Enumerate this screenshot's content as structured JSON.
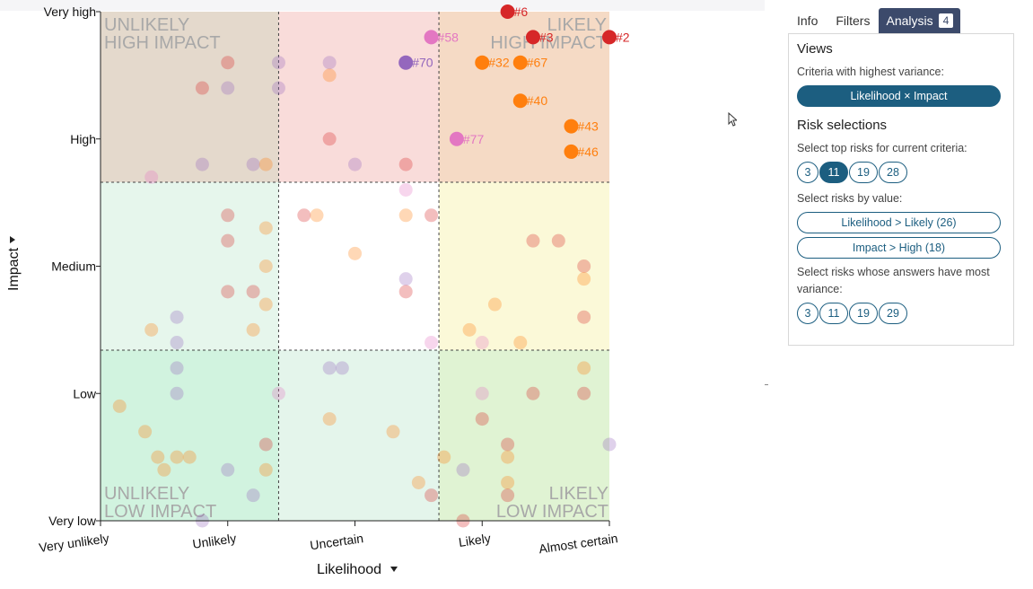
{
  "chart_data": {
    "type": "scatter",
    "title": "",
    "xlabel": "Likelihood",
    "ylabel": "Impact",
    "x_ticks": [
      "Very unlikely",
      "Unlikely",
      "Uncertain",
      "Likely",
      "Almost certain"
    ],
    "y_ticks": [
      "Very high",
      "High",
      "Medium",
      "Low",
      "Very low"
    ],
    "xlim": [
      1,
      5
    ],
    "ylim": [
      1,
      5
    ],
    "quadrant_labels": {
      "top_left": [
        "UNLIKELY",
        "HIGH IMPACT"
      ],
      "top_right": [
        "LIKELY",
        "HIGH IMPACT"
      ],
      "bottom_left": [
        "UNLIKELY",
        "LOW IMPACT"
      ],
      "bottom_right": [
        "LIKELY",
        "LOW IMPACT"
      ]
    },
    "zone_colors": {
      "top_left": "#e4d9cc",
      "top_mid": "#f9dcda",
      "top_right": "#f5dac5",
      "mid_left": "#e6f6ec",
      "mid_mid": "#ffffff",
      "mid_right": "#fbf9d8",
      "bot_left": "#d1f3df",
      "bot_mid": "#e4f5eb",
      "bot_right": "#e0f3d3"
    },
    "highlighted": [
      {
        "label": "#6",
        "x": 4.2,
        "y": 5.0,
        "color": "#d62728"
      },
      {
        "label": "#3",
        "x": 4.4,
        "y": 4.8,
        "color": "#d62728"
      },
      {
        "label": "#2",
        "x": 5.0,
        "y": 4.8,
        "color": "#d62728"
      },
      {
        "label": "#58",
        "x": 3.6,
        "y": 4.8,
        "color": "#e377c2"
      },
      {
        "label": "#70",
        "x": 3.4,
        "y": 4.6,
        "color": "#9467bd"
      },
      {
        "label": "#32",
        "x": 4.0,
        "y": 4.6,
        "color": "#ff7f0e"
      },
      {
        "label": "#67",
        "x": 4.3,
        "y": 4.6,
        "color": "#ff7f0e"
      },
      {
        "label": "#40",
        "x": 4.3,
        "y": 4.3,
        "color": "#ff7f0e"
      },
      {
        "label": "#43",
        "x": 4.7,
        "y": 4.1,
        "color": "#ff7f0e"
      },
      {
        "label": "#77",
        "x": 3.8,
        "y": 4.0,
        "color": "#e377c2"
      },
      {
        "label": "#46",
        "x": 4.7,
        "y": 3.9,
        "color": "#ff7f0e"
      }
    ],
    "background_points": [
      [
        2.0,
        4.6,
        "#d62728"
      ],
      [
        1.8,
        4.4,
        "#d62728"
      ],
      [
        2.0,
        4.4,
        "#9467bd"
      ],
      [
        2.4,
        4.6,
        "#9467bd"
      ],
      [
        2.4,
        4.4,
        "#9467bd"
      ],
      [
        2.8,
        4.6,
        "#9467bd"
      ],
      [
        2.8,
        4.5,
        "#ff7f0e"
      ],
      [
        2.8,
        4.0,
        "#d62728"
      ],
      [
        1.8,
        3.8,
        "#9467bd"
      ],
      [
        2.2,
        3.8,
        "#9467bd"
      ],
      [
        2.3,
        3.8,
        "#ff7f0e"
      ],
      [
        3.0,
        3.8,
        "#9467bd"
      ],
      [
        3.4,
        3.8,
        "#d62728"
      ],
      [
        1.4,
        3.7,
        "#e377c2"
      ],
      [
        2.0,
        3.4,
        "#d62728"
      ],
      [
        2.0,
        3.2,
        "#d62728"
      ],
      [
        2.3,
        3.3,
        "#ff7f0e"
      ],
      [
        2.3,
        3.0,
        "#ff7f0e"
      ],
      [
        2.0,
        2.8,
        "#d62728"
      ],
      [
        2.2,
        2.8,
        "#d62728"
      ],
      [
        2.3,
        2.7,
        "#ff7f0e"
      ],
      [
        1.6,
        2.6,
        "#9467bd"
      ],
      [
        1.4,
        2.5,
        "#ff7f0e"
      ],
      [
        2.2,
        2.5,
        "#ff7f0e"
      ],
      [
        1.6,
        2.4,
        "#9467bd"
      ],
      [
        2.6,
        3.4,
        "#d62728"
      ],
      [
        2.7,
        3.4,
        "#ff7f0e"
      ],
      [
        3.4,
        3.6,
        "#e377c2"
      ],
      [
        3.4,
        3.4,
        "#ff7f0e"
      ],
      [
        3.6,
        3.4,
        "#d62728"
      ],
      [
        3.0,
        3.1,
        "#ff7f0e"
      ],
      [
        3.4,
        2.9,
        "#9467bd"
      ],
      [
        3.4,
        2.8,
        "#d62728"
      ],
      [
        3.6,
        2.4,
        "#e377c2"
      ],
      [
        4.4,
        3.2,
        "#d62728"
      ],
      [
        4.6,
        3.2,
        "#d62728"
      ],
      [
        4.8,
        3.0,
        "#d62728"
      ],
      [
        4.8,
        2.9,
        "#ff7f0e"
      ],
      [
        4.8,
        2.6,
        "#d62728"
      ],
      [
        4.1,
        2.7,
        "#ff7f0e"
      ],
      [
        3.9,
        2.5,
        "#ff7f0e"
      ],
      [
        4.0,
        2.4,
        "#e377c2"
      ],
      [
        4.3,
        2.4,
        "#ff7f0e"
      ],
      [
        1.6,
        2.2,
        "#9467bd"
      ],
      [
        1.6,
        2.0,
        "#9467bd"
      ],
      [
        1.15,
        1.9,
        "#ff7f0e"
      ],
      [
        1.35,
        1.7,
        "#ff7f0e"
      ],
      [
        1.45,
        1.5,
        "#ff7f0e"
      ],
      [
        1.6,
        1.5,
        "#ff7f0e"
      ],
      [
        1.7,
        1.5,
        "#ff7f0e"
      ],
      [
        1.5,
        1.4,
        "#ff7f0e"
      ],
      [
        2.0,
        1.4,
        "#9467bd"
      ],
      [
        2.3,
        1.4,
        "#ff7f0e"
      ],
      [
        2.2,
        1.2,
        "#9467bd"
      ],
      [
        1.8,
        1.0,
        "#9467bd"
      ],
      [
        2.4,
        2.0,
        "#e377c2"
      ],
      [
        2.8,
        2.2,
        "#9467bd"
      ],
      [
        2.9,
        2.2,
        "#9467bd"
      ],
      [
        2.3,
        1.6,
        "#d62728"
      ],
      [
        2.8,
        1.8,
        "#ff7f0e"
      ],
      [
        3.3,
        1.7,
        "#ff7f0e"
      ],
      [
        3.5,
        1.3,
        "#ff7f0e"
      ],
      [
        3.6,
        1.2,
        "#d62728"
      ],
      [
        3.7,
        1.5,
        "#ff7f0e"
      ],
      [
        4.0,
        2.0,
        "#e377c2"
      ],
      [
        4.4,
        2.0,
        "#d62728"
      ],
      [
        4.8,
        2.2,
        "#ff7f0e"
      ],
      [
        4.8,
        2.0,
        "#d62728"
      ],
      [
        4.0,
        1.8,
        "#d62728"
      ],
      [
        4.2,
        1.6,
        "#d62728"
      ],
      [
        4.2,
        1.5,
        "#ff7f0e"
      ],
      [
        3.85,
        1.4,
        "#9467bd"
      ],
      [
        5.0,
        1.6,
        "#9467bd"
      ],
      [
        4.2,
        1.3,
        "#ff7f0e"
      ],
      [
        4.2,
        1.2,
        "#d62728"
      ],
      [
        3.85,
        1.0,
        "#d62728"
      ]
    ]
  },
  "tabs": [
    {
      "label": "Info"
    },
    {
      "label": "Filters"
    },
    {
      "label": "Analysis",
      "badge": "4"
    }
  ],
  "panel": {
    "views_title": "Views",
    "criteria_label": "Criteria with highest variance:",
    "criteria_button": "Likelihood × Impact",
    "risk_title": "Risk selections",
    "top_label": "Select top risks for current criteria:",
    "top_options": [
      "3",
      "11",
      "19",
      "28"
    ],
    "top_selected": "11",
    "value_label": "Select risks by value:",
    "value_buttons": [
      "Likelihood > Likely (26)",
      "Impact > High (18)"
    ],
    "variance_label": "Select risks whose answers have most variance:",
    "variance_options": [
      "3",
      "11",
      "19",
      "29"
    ]
  }
}
